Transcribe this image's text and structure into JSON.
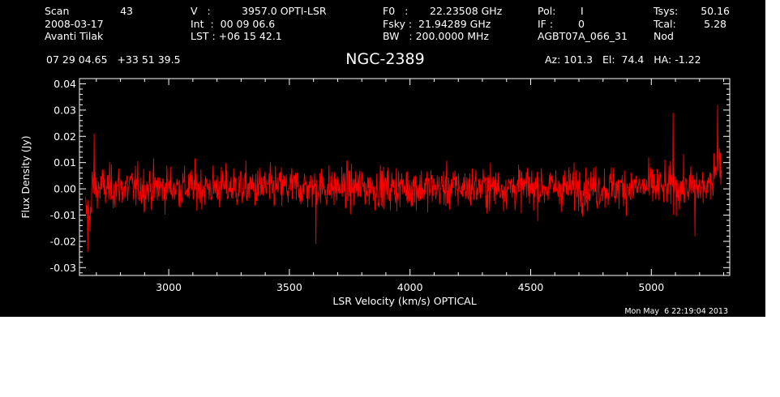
{
  "header": {
    "scan_label": "Scan",
    "scan_value": "43",
    "date": "2008-03-17",
    "observer": "Avanti Tilak",
    "v_label": "V   :",
    "v_value": "3957.0 OPTI-LSR",
    "int_line": "Int  :  00 09 06.6",
    "lst_line": "LST : +06 15 42.1",
    "f0_label": "F0   :",
    "f0_value": "22.23508 GHz",
    "fsky_line": "Fsky :  21.94289 GHz",
    "bw_line": "BW   : 200.0000 MHz",
    "pol_label": "Pol:",
    "pol_value": "I",
    "if_label": "IF :",
    "if_value": "0",
    "project": "AGBT07A_066_31",
    "tsys_label": "Tsys:",
    "tsys_value": "50.16",
    "tcal_label": "Tcal:",
    "tcal_value": "5.28",
    "mode": "Nod",
    "coords": "07 29 04.65   +33 51 39.5",
    "object": "NGC-2389",
    "az_el_ha": "Az: 101.3   El:  74.4   HA: -1.22",
    "timestamp": "Mon May  6 22:19:04 2013"
  },
  "colors": {
    "background": "#000000",
    "foreground": "#ffffff",
    "series": "#ff0000"
  },
  "chart_data": {
    "type": "line",
    "title": "NGC-2389",
    "xlabel": "LSR Velocity (km/s) OPTICAL",
    "ylabel": "Flux Density (Jy)",
    "xlim": [
      2630,
      5325
    ],
    "ylim": [
      -0.033,
      0.042
    ],
    "x_ticks": [
      3000,
      3500,
      4000,
      4500,
      5000
    ],
    "x_tick_labels": [
      "3000",
      "3500",
      "4000",
      "4500",
      "5000"
    ],
    "y_ticks": [
      -0.03,
      -0.02,
      -0.01,
      0.0,
      0.01,
      0.02,
      0.03,
      0.04
    ],
    "y_tick_labels": [
      "-0.03",
      "-0.02",
      "-0.01",
      "0.00",
      "0.01",
      "0.02",
      "0.03",
      "0.04"
    ],
    "grid": false,
    "series": [
      {
        "color": "#ff0000",
        "x_start": 2655,
        "x_end": 5290,
        "noise_rms": 0.0065,
        "mean": 0.0005,
        "approx_extremes": [
          {
            "x": 2665,
            "y": -0.024
          },
          {
            "x": 2690,
            "y": 0.021
          },
          {
            "x": 3610,
            "y": -0.021
          },
          {
            "x": 5090,
            "y": 0.029
          },
          {
            "x": 5180,
            "y": -0.018
          },
          {
            "x": 5275,
            "y": 0.032
          }
        ]
      }
    ]
  }
}
